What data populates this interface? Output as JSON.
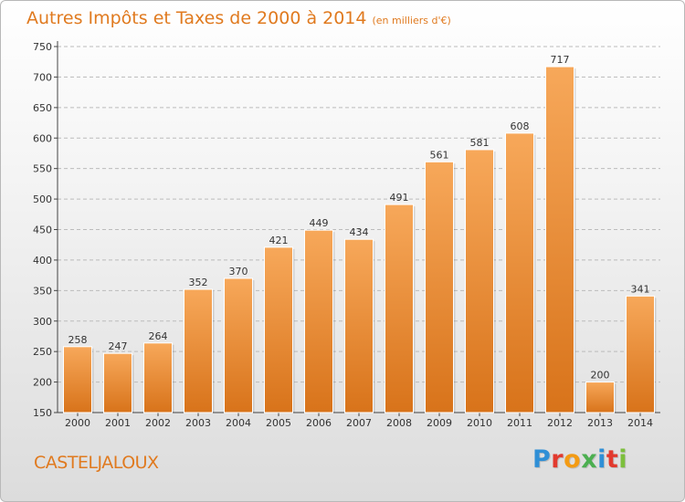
{
  "header": {
    "title": "Autres Impôts et Taxes de 2000 à 2014",
    "subtitle": "(en milliers d'€)"
  },
  "footer": {
    "city": "CASTELJALOUX",
    "brand": "Proxiti",
    "brand_colors": [
      "#2f8fd6",
      "#e23a2e",
      "#f39b14",
      "#4caf50",
      "#2f8fd6",
      "#e23a2e",
      "#7cbf3c"
    ]
  },
  "colors": {
    "accent": "#e07a1f",
    "bar_top": "#f7a85a",
    "bar_bottom": "#d8731a",
    "grid": "#bbbbbb"
  },
  "chart_data": {
    "type": "bar",
    "title": "Autres Impôts et Taxes de 2000 à 2014",
    "subtitle": "(en milliers d'€)",
    "categories": [
      "2000",
      "2001",
      "2002",
      "2003",
      "2004",
      "2005",
      "2006",
      "2007",
      "2008",
      "2009",
      "2010",
      "2011",
      "2012",
      "2013",
      "2014"
    ],
    "values": [
      258,
      247,
      264,
      352,
      370,
      421,
      449,
      434,
      491,
      561,
      581,
      608,
      717,
      200,
      341
    ],
    "ylim": [
      150,
      750
    ],
    "yticks": [
      150,
      200,
      250,
      300,
      350,
      400,
      450,
      500,
      550,
      600,
      650,
      700,
      750
    ],
    "grid": true,
    "data_labels": true
  }
}
